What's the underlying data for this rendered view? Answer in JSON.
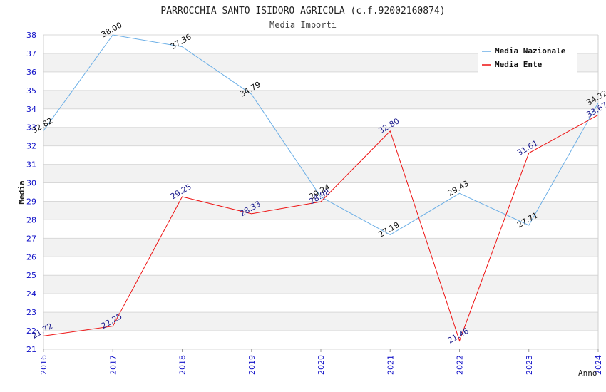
{
  "chart_data": {
    "type": "line",
    "title": "PARROCCHIA SANTO ISIDORO AGRICOLA (c.f.92002160874)",
    "subtitle": "Media Importi",
    "xlabel": "Anno",
    "ylabel": "Media",
    "x": [
      "2016",
      "2017",
      "2018",
      "2019",
      "2020",
      "2021",
      "2022",
      "2023",
      "2024"
    ],
    "ylim": [
      21,
      38
    ],
    "yticks": [
      21,
      22,
      23,
      24,
      25,
      26,
      27,
      28,
      29,
      30,
      31,
      32,
      33,
      34,
      35,
      36,
      37,
      38
    ],
    "grid": true,
    "legend_position": "top-right",
    "series": [
      {
        "name": "Media Nazionale",
        "color": "#6aaee6",
        "label_color": "#111111",
        "values": [
          32.82,
          38.0,
          37.36,
          34.79,
          29.24,
          27.19,
          29.43,
          27.71,
          34.32
        ],
        "labels": [
          "32.82",
          "38.00",
          "37.36",
          "34.79",
          "29.24",
          "27.19",
          "29.43",
          "27.71",
          "34.32"
        ]
      },
      {
        "name": "Media Ente",
        "color": "#ee1111",
        "label_color": "#1a1a8c",
        "values": [
          21.72,
          22.25,
          29.25,
          28.33,
          28.98,
          32.8,
          21.46,
          31.61,
          33.67
        ],
        "labels": [
          "21.72",
          "22.25",
          "29.25",
          "28.33",
          "28.98",
          "32.80",
          "21.46",
          "31.61",
          "33.67"
        ]
      }
    ],
    "colors": {
      "band": "#f2f2f2",
      "grid": "#d8d8d8",
      "tick_text": "#1010c8"
    }
  }
}
